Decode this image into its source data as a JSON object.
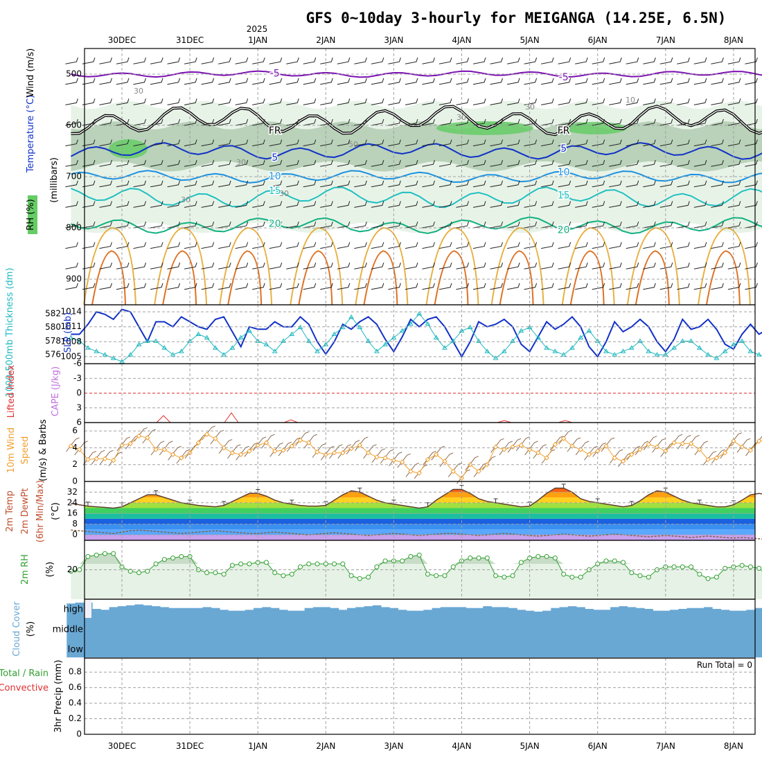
{
  "chart_data": {
    "type": "meteogram",
    "title": "GFS 0~10day 3-hourly for MEIGANGA (14.25E, 6.5N)",
    "year_label": "2025",
    "dates": [
      "30DEC",
      "31DEC",
      "1JAN",
      "2JAN",
      "3JAN",
      "4JAN",
      "5JAN",
      "6JAN",
      "7JAN",
      "8JAN"
    ],
    "steps_per_day": 8,
    "colors": {
      "temp": "#1030c8",
      "temp_light": "#1a90e0",
      "temp_teal": "#20c0c0",
      "temp_green": "#10b080",
      "wind500": "#7a10b0",
      "freezing": "#000000",
      "rh_light": "#e6f2e6",
      "rh_mid": "#b4ceb4",
      "rh_high": "#66cc66",
      "slp": "#1030c8",
      "thickness": "#20b8c0",
      "lifted": "#e03030",
      "cape": "#c070e0",
      "wind10": "#f0a030",
      "rh2m": "#30a030",
      "cloud": "#6aa8d4",
      "grid": "#a0a0a0"
    },
    "panels": {
      "upper_air": {
        "ylabel_parts": [
          "RH (%)",
          "Temperature (°C)",
          "Wind (m/s)"
        ],
        "ylabel_right": "(millibars)",
        "pressure_ticks": [
          "500",
          "600",
          "700",
          "800",
          "900"
        ],
        "pressure_range": [
          450,
          950
        ],
        "temp_levels": [
          {
            "label": "-5",
            "pressure": 500,
            "amp": 3
          },
          {
            "label": "FR",
            "pressure": 590,
            "amp": 14
          },
          {
            "label": "5",
            "pressure": 650,
            "amp": 8
          },
          {
            "label": "10",
            "pressure": 700,
            "amp": 6
          },
          {
            "label": "15",
            "pressure": 740,
            "amp": 10
          },
          {
            "label": "20",
            "pressure": 795,
            "amp": 8
          }
        ],
        "rh_labels": [
          "30",
          "30",
          "30",
          "30",
          "50",
          "30",
          "10",
          "30"
        ]
      },
      "pressure": {
        "ylabel_left": "1000-500mb Thickness (dm)",
        "ylabel_right": "SLP (mb)",
        "left_ticks": [
          "582",
          "580",
          "578",
          "576"
        ],
        "right_ticks": [
          "1014",
          "1011",
          "1008",
          "1005"
        ],
        "slp_range": [
          1004,
          1015
        ],
        "slp": [
          1009.5,
          1009.5,
          1011.5,
          1014,
          1013.5,
          1012.5,
          1014.5,
          1014,
          1011,
          1008,
          1012,
          1012,
          1011,
          1013,
          1012,
          1011,
          1010.5,
          1012.5,
          1013,
          1010,
          1007,
          1011,
          1010.5,
          1010.5,
          1012,
          1011,
          1011,
          1013,
          1011.5,
          1008,
          1005.5,
          1008,
          1011.5,
          1010.5,
          1012,
          1013,
          1011.5,
          1008.5,
          1006,
          1009,
          1012.5,
          1011,
          1012.5,
          1013,
          1011,
          1008,
          1005,
          1008,
          1012,
          1011,
          1011.5,
          1012.5,
          1011,
          1007.5,
          1006,
          1009,
          1012,
          1010.5,
          1011.5,
          1013,
          1011,
          1007,
          1005,
          1008,
          1012,
          1010,
          1011,
          1012.5,
          1011,
          1008,
          1006,
          1008.5,
          1012.5,
          1010.5,
          1011,
          1012.5,
          1010.5,
          1007.5,
          1006.5,
          1009.5,
          1011.5,
          1009.5,
          1010.5,
          1011.5,
          1010.5,
          1008
        ],
        "thickness": [
          578.5,
          578,
          577,
          576.5,
          576,
          575.5,
          575,
          576,
          577.5,
          578,
          578,
          577,
          576,
          576.5,
          578,
          579,
          578.5,
          577,
          576,
          577,
          578.5,
          579.5,
          578,
          577.5,
          576.5,
          578,
          579,
          580,
          578,
          576.5,
          577.5,
          579,
          580,
          581.5,
          580,
          578,
          576.5,
          577.5,
          578.5,
          579.5,
          580.5,
          582,
          580.5,
          578.5,
          577,
          578,
          579.5,
          580,
          578,
          576.5,
          575.5,
          576.5,
          578,
          579.5,
          580,
          578.5,
          577,
          576.5,
          576,
          577,
          578.5,
          579.5,
          578,
          576.5,
          576,
          576.5,
          577,
          578,
          576.5,
          576,
          576,
          577,
          578,
          578,
          577,
          576,
          575.5,
          576.5,
          577.5,
          578,
          576.5,
          576,
          575.5,
          575.5
        ]
      },
      "stability": {
        "ylabel_left": "Lifted Index",
        "ylabel_right": "CAPE (J/kg)",
        "ticks": [
          "-6",
          "-3",
          "0",
          "3",
          "6"
        ]
      },
      "wind10m": {
        "ylabel_left": "10m Wind",
        "ylabel_mid": "Speed",
        "ylabel_right": "(m/s) & Barbs",
        "ticks": [
          "6",
          "4",
          "2",
          "0"
        ],
        "speed": [
          4.2,
          3.8,
          2.6,
          2.7,
          2.7,
          2.5,
          4.3,
          4.5,
          5.4,
          5.2,
          3.8,
          3.8,
          3.2,
          2.8,
          3.4,
          4.6,
          5.6,
          5.1,
          4,
          3.4,
          3.2,
          3.6,
          4.3,
          4.6,
          3.6,
          3.7,
          4.2,
          4.9,
          4.6,
          3.5,
          3.2,
          3.4,
          3.4,
          3.9,
          4.3,
          3.4,
          2.9,
          2.8,
          2.5,
          2.3,
          1.2,
          1,
          2.6,
          3.2,
          2.4,
          1.2,
          0.4,
          2,
          1.2,
          2,
          4.1,
          3.8,
          4.1,
          4.3,
          3.8,
          3.4,
          2.8,
          4.4,
          5.1,
          4.2,
          3.8,
          3.2,
          3.6,
          4.2,
          2.8,
          2.4,
          3.2,
          3.8,
          4.4,
          4.1,
          3.6,
          4.6,
          4.5,
          4.5,
          3.8,
          2.6,
          2.8,
          3.4,
          4.8,
          4.1,
          3.7,
          4.8,
          4.9,
          3.6,
          4.1,
          4.8
        ]
      },
      "temp2m": {
        "ylabel_parts": [
          "2m Temp",
          "2m DewPt",
          "(6hr Min/Max)",
          "(°C)"
        ],
        "ticks": [
          "32",
          "24",
          "16",
          "8",
          "0"
        ],
        "temp": [
          23.5,
          22.5,
          21.5,
          21,
          20.5,
          20,
          21,
          24,
          27,
          30,
          30,
          28,
          26,
          24,
          23,
          22,
          21.5,
          21,
          22,
          25,
          28,
          31,
          31,
          29,
          26,
          24,
          23,
          22,
          21.5,
          21.5,
          22,
          26,
          30,
          33,
          32,
          29,
          26,
          24,
          23,
          22,
          21,
          20,
          21,
          26,
          30,
          34,
          34,
          31,
          27,
          25,
          24,
          23,
          22,
          21,
          21.5,
          26,
          31,
          35,
          35,
          32,
          27,
          25,
          24,
          23,
          22,
          21,
          22,
          25.5,
          30,
          33,
          32,
          29,
          26,
          24,
          23,
          22,
          21,
          21,
          22.5,
          26,
          30,
          31,
          30,
          27
        ],
        "dewpoint": [
          3.5,
          3,
          2.5,
          2,
          1.5,
          1,
          2,
          3,
          3.5,
          3,
          2.5,
          2,
          1.5,
          1,
          1.5,
          2,
          2.5,
          3,
          2.5,
          2,
          1.5,
          1,
          1,
          1.5,
          2,
          1.5,
          1,
          0.5,
          0,
          0.5,
          1,
          1.5,
          1,
          0.5,
          0,
          -0.5,
          0,
          0.5,
          1,
          0.5,
          0,
          -0.5,
          0,
          0.5,
          1,
          1,
          0.5,
          0,
          -0.5,
          0,
          0.5,
          1,
          0.5,
          0,
          -0.5,
          -1,
          -0.5,
          0,
          0.5,
          0,
          -0.5,
          -1,
          -0.5,
          0,
          0.5,
          0,
          -0.5,
          -1,
          -1.5,
          -1,
          -0.5,
          -1,
          -1.5,
          -2,
          -1.5,
          -1,
          -1.5,
          -2,
          -2.5,
          -2,
          -2.5,
          -3,
          -3.5,
          -3
        ]
      },
      "rh2m": {
        "ylabel_left": "2m RH",
        "ylabel_right": "(%)",
        "ticks": [
          "20"
        ],
        "rh": [
          19,
          20,
          29,
          30,
          31,
          31,
          22,
          19,
          18,
          19,
          24,
          27,
          28,
          29,
          29,
          20,
          18,
          18,
          17,
          23,
          24,
          24,
          25,
          25,
          18,
          16,
          17,
          22,
          24,
          24,
          24,
          24,
          24,
          16,
          14,
          15,
          22,
          26,
          26,
          26,
          29,
          30,
          17,
          16,
          16,
          22,
          26,
          28,
          28,
          28,
          16,
          15,
          16,
          25,
          28,
          29,
          29,
          28,
          17,
          15,
          15,
          20,
          24,
          26,
          26,
          25,
          18,
          16,
          15,
          20,
          22,
          22,
          22,
          22,
          17,
          14,
          15,
          21,
          22,
          23,
          22,
          21,
          16,
          14,
          15,
          19
        ]
      },
      "cloud": {
        "ylabel_left": "Cloud Cover",
        "ylabel_right": "(%)",
        "levels": [
          "high",
          "middle",
          "low"
        ],
        "high_cover": [
          80,
          85,
          85,
          50,
          45,
          60,
          65,
          70,
          75,
          70,
          65,
          60,
          55,
          55,
          55,
          55,
          60,
          55,
          45,
          40,
          40,
          45,
          55,
          60,
          55,
          45,
          40,
          40,
          55,
          60,
          60,
          55,
          45,
          55,
          60,
          65,
          70,
          60,
          55,
          45,
          40,
          40,
          45,
          55,
          60,
          60,
          60,
          55,
          55,
          65,
          60,
          60,
          55,
          45,
          40,
          35,
          40,
          55,
          60,
          65,
          60,
          50,
          45,
          45,
          60,
          65,
          60,
          55,
          50,
          40,
          40,
          45,
          50,
          55,
          55,
          60,
          50,
          45,
          40,
          40,
          45,
          55,
          55,
          50,
          45,
          35
        ],
        "middle_cover": [
          100,
          100,
          100,
          100,
          100,
          100,
          100,
          100,
          100,
          100,
          100,
          100,
          100,
          100,
          100,
          100,
          100,
          100,
          100,
          100,
          100,
          100,
          100,
          100,
          100,
          100,
          100,
          100,
          100,
          100,
          100,
          100,
          100,
          100,
          100,
          100,
          100,
          100,
          100,
          100,
          100,
          100,
          100,
          100,
          100,
          100,
          100,
          100,
          100,
          100,
          100,
          100,
          100,
          100,
          100,
          100,
          100,
          100,
          100,
          100,
          100,
          100,
          100,
          100,
          100,
          100,
          100,
          100,
          100,
          100,
          100,
          100,
          100,
          100,
          100,
          100,
          100,
          100,
          100,
          100,
          100,
          100,
          100,
          100,
          100,
          100
        ],
        "low_cover": [
          100,
          100,
          100,
          100,
          100,
          100,
          100,
          100,
          100,
          100,
          100,
          100,
          100,
          100,
          100,
          100,
          100,
          100,
          100,
          100,
          100,
          100,
          100,
          100,
          100,
          100,
          100,
          100,
          100,
          100,
          100,
          100,
          100,
          100,
          100,
          100,
          100,
          100,
          100,
          100,
          100,
          100,
          100,
          100,
          100,
          100,
          100,
          100,
          100,
          100,
          100,
          100,
          100,
          100,
          100,
          100,
          100,
          100,
          100,
          100,
          100,
          100,
          100,
          100,
          100,
          100,
          100,
          100,
          100,
          100,
          100,
          100,
          100,
          100,
          100,
          100,
          100,
          100,
          100,
          100,
          100,
          100,
          100,
          100,
          100,
          100
        ]
      },
      "precip": {
        "ylabel_left": "Total / Rain",
        "ylabel_sub": "Convective",
        "ylabel_right": "3hr Precip (mm)",
        "ticks": [
          "0.8",
          "0.6",
          "0.4",
          "0.2",
          "0"
        ],
        "run_total_label": "Run Total = 0",
        "values": []
      }
    }
  }
}
